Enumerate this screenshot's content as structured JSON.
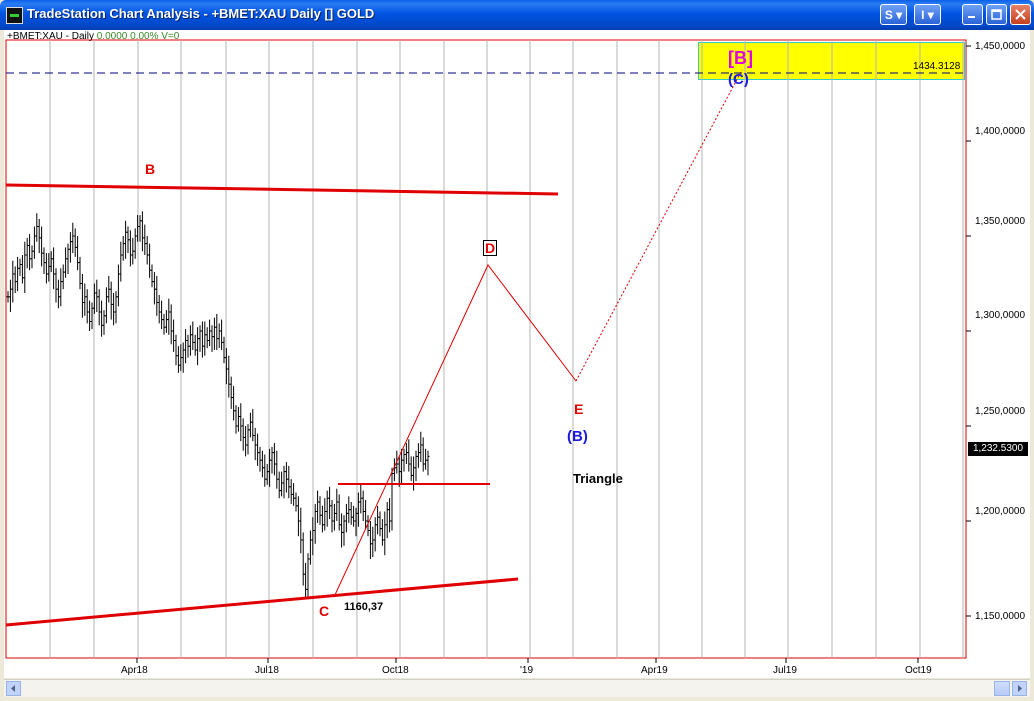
{
  "window": {
    "title": "TradeStation Chart Analysis - +BMET:XAU Daily [] GOLD",
    "btn_s": "S ▾",
    "btn_i": "I ▾"
  },
  "symbol_bar": {
    "symbol": "+BMET:XAU - Daily",
    "values": "0.0000  0.00%  V=0"
  },
  "price_axis": [
    "1,450,0000",
    "1,400,0000",
    "1,350,0000",
    "1,300,0000",
    "1,250,0000",
    "1,200,0000",
    "1,150,0000"
  ],
  "last_price": "1,232.5300",
  "target_price": "1434.3128",
  "time_axis": [
    "Apr18",
    "Jul18",
    "Oct18",
    "'19",
    "Apr19",
    "Jul19",
    "Oct19"
  ],
  "annotations": {
    "b_red": "B",
    "c_red": "C",
    "d_red": "D",
    "e_red": "E",
    "b_blue": "(B)",
    "c_blue": "(C)",
    "b_magenta": "[B]",
    "low_value": "1160,37",
    "triangle": "Triangle"
  },
  "colors": {
    "red": "#e00000",
    "blue": "#1a1ad8",
    "magenta": "#e000e0",
    "yellow": "#ffff00",
    "navy": "#000080"
  },
  "chart_data": {
    "type": "ohlc",
    "symbol": "+BMET:XAU",
    "interval": "Daily",
    "ylim": [
      1130,
      1455
    ],
    "closes": [
      1318,
      1322,
      1330,
      1326,
      1333,
      1335,
      1328,
      1340,
      1345,
      1338,
      1342,
      1350,
      1355,
      1349,
      1341,
      1336,
      1330,
      1334,
      1338,
      1330,
      1322,
      1318,
      1326,
      1331,
      1338,
      1343,
      1347,
      1350,
      1344,
      1336,
      1325,
      1315,
      1318,
      1310,
      1305,
      1312,
      1320,
      1318,
      1310,
      1303,
      1308,
      1318,
      1322,
      1314,
      1310,
      1318,
      1330,
      1340,
      1346,
      1352,
      1348,
      1340,
      1342,
      1350,
      1355,
      1358,
      1349,
      1346,
      1340,
      1332,
      1326,
      1322,
      1315,
      1310,
      1306,
      1302,
      1306,
      1310,
      1300,
      1295,
      1287,
      1282,
      1286,
      1290,
      1295,
      1292,
      1298,
      1294,
      1290,
      1296,
      1300,
      1292,
      1298,
      1295,
      1300,
      1297,
      1302,
      1296,
      1300,
      1294,
      1286,
      1280,
      1272,
      1265,
      1258,
      1250,
      1255,
      1250,
      1244,
      1240,
      1248,
      1252,
      1245,
      1240,
      1236,
      1232,
      1228,
      1222,
      1226,
      1232,
      1236,
      1230,
      1222,
      1216,
      1220,
      1226,
      1222,
      1218,
      1214,
      1212,
      1208,
      1200,
      1190,
      1172,
      1164,
      1180,
      1190,
      1195,
      1205,
      1210,
      1203,
      1198,
      1205,
      1212,
      1208,
      1200,
      1204,
      1210,
      1198,
      1194,
      1200,
      1204,
      1206,
      1202,
      1200,
      1204,
      1210,
      1212,
      1205,
      1200,
      1195,
      1188,
      1190,
      1198,
      1202,
      1196,
      1190,
      1198,
      1206,
      1200,
      1225,
      1228,
      1230,
      1226,
      1232,
      1235,
      1236,
      1230,
      1224,
      1228,
      1234,
      1236,
      1240,
      1230,
      1232,
      1234
    ]
  }
}
